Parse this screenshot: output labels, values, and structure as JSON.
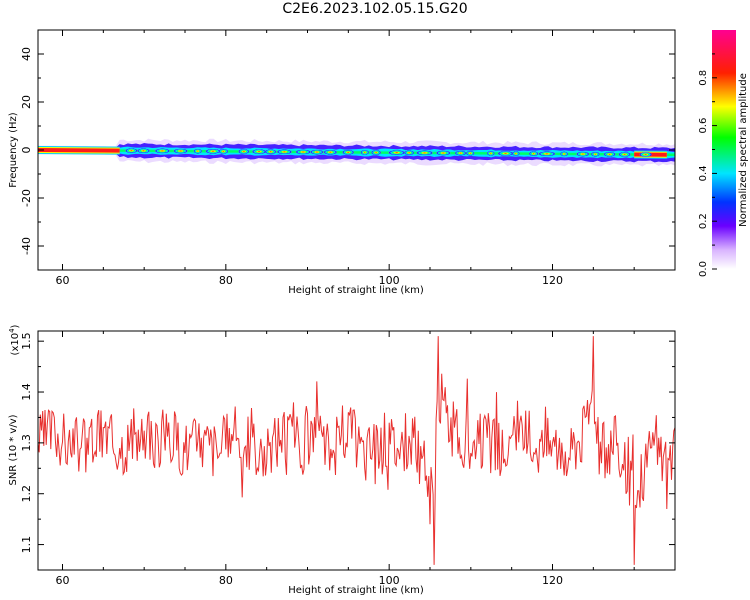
{
  "title": "C2E6.2023.102.05.15.G20",
  "chart_data": [
    {
      "type": "heatmap",
      "xlabel": "Height of straight line (km)",
      "ylabel": "Frequency (Hz)",
      "xlim": [
        57,
        135
      ],
      "ylim": [
        -50,
        50
      ],
      "x_ticks": [
        60,
        80,
        100,
        120
      ],
      "y_ticks": [
        -40,
        -20,
        0,
        20,
        40
      ],
      "band": {
        "x_start": 57,
        "x_end": 135,
        "center_freq_start": 0,
        "center_freq_end": -2,
        "strong_segments": [
          [
            57,
            67
          ],
          [
            130,
            134
          ]
        ],
        "spread_start": 67
      },
      "colorbar": {
        "label": "Normalized spectral amplitude",
        "ticks": [
          0.0,
          0.2,
          0.4,
          0.6,
          0.8
        ],
        "range": [
          0,
          1
        ],
        "colors": [
          "#ffffff",
          "#d9b3ff",
          "#6600ff",
          "#0000ff",
          "#00ffff",
          "#00ff00",
          "#ffff00",
          "#ff0000",
          "#ff0080"
        ]
      }
    },
    {
      "type": "line",
      "xlabel": "Height of straight line (km)",
      "ylabel": "SNR (10 * v/v)",
      "scale_label": "(x10",
      "scale_exp": "4",
      "scale_close": ")",
      "xlim": [
        57,
        135
      ],
      "ylim": [
        1.05,
        1.52
      ],
      "x_ticks": [
        60,
        80,
        100,
        120
      ],
      "y_ticks": [
        1.1,
        1.2,
        1.3,
        1.4,
        1.5
      ],
      "series": [
        {
          "color": "#e8302e",
          "x": [
            57,
            59,
            61,
            63,
            65,
            67,
            69,
            71,
            73,
            75,
            77,
            79,
            81,
            83,
            85,
            87,
            89,
            91,
            93,
            95,
            97,
            99,
            101,
            103,
            105,
            105.5,
            106,
            108,
            110,
            112,
            114,
            116,
            118,
            120,
            122,
            124,
            125,
            126,
            128,
            130,
            132,
            133,
            134,
            135
          ],
          "y": [
            1.3,
            1.35,
            1.28,
            1.31,
            1.33,
            1.29,
            1.32,
            1.3,
            1.34,
            1.28,
            1.31,
            1.27,
            1.33,
            1.3,
            1.26,
            1.35,
            1.29,
            1.31,
            1.27,
            1.36,
            1.25,
            1.33,
            1.29,
            1.31,
            1.14,
            1.06,
            1.51,
            1.33,
            1.28,
            1.31,
            1.26,
            1.34,
            1.29,
            1.3,
            1.27,
            1.35,
            1.51,
            1.26,
            1.3,
            1.06,
            1.29,
            1.31,
            1.17,
            1.33
          ]
        }
      ]
    }
  ]
}
